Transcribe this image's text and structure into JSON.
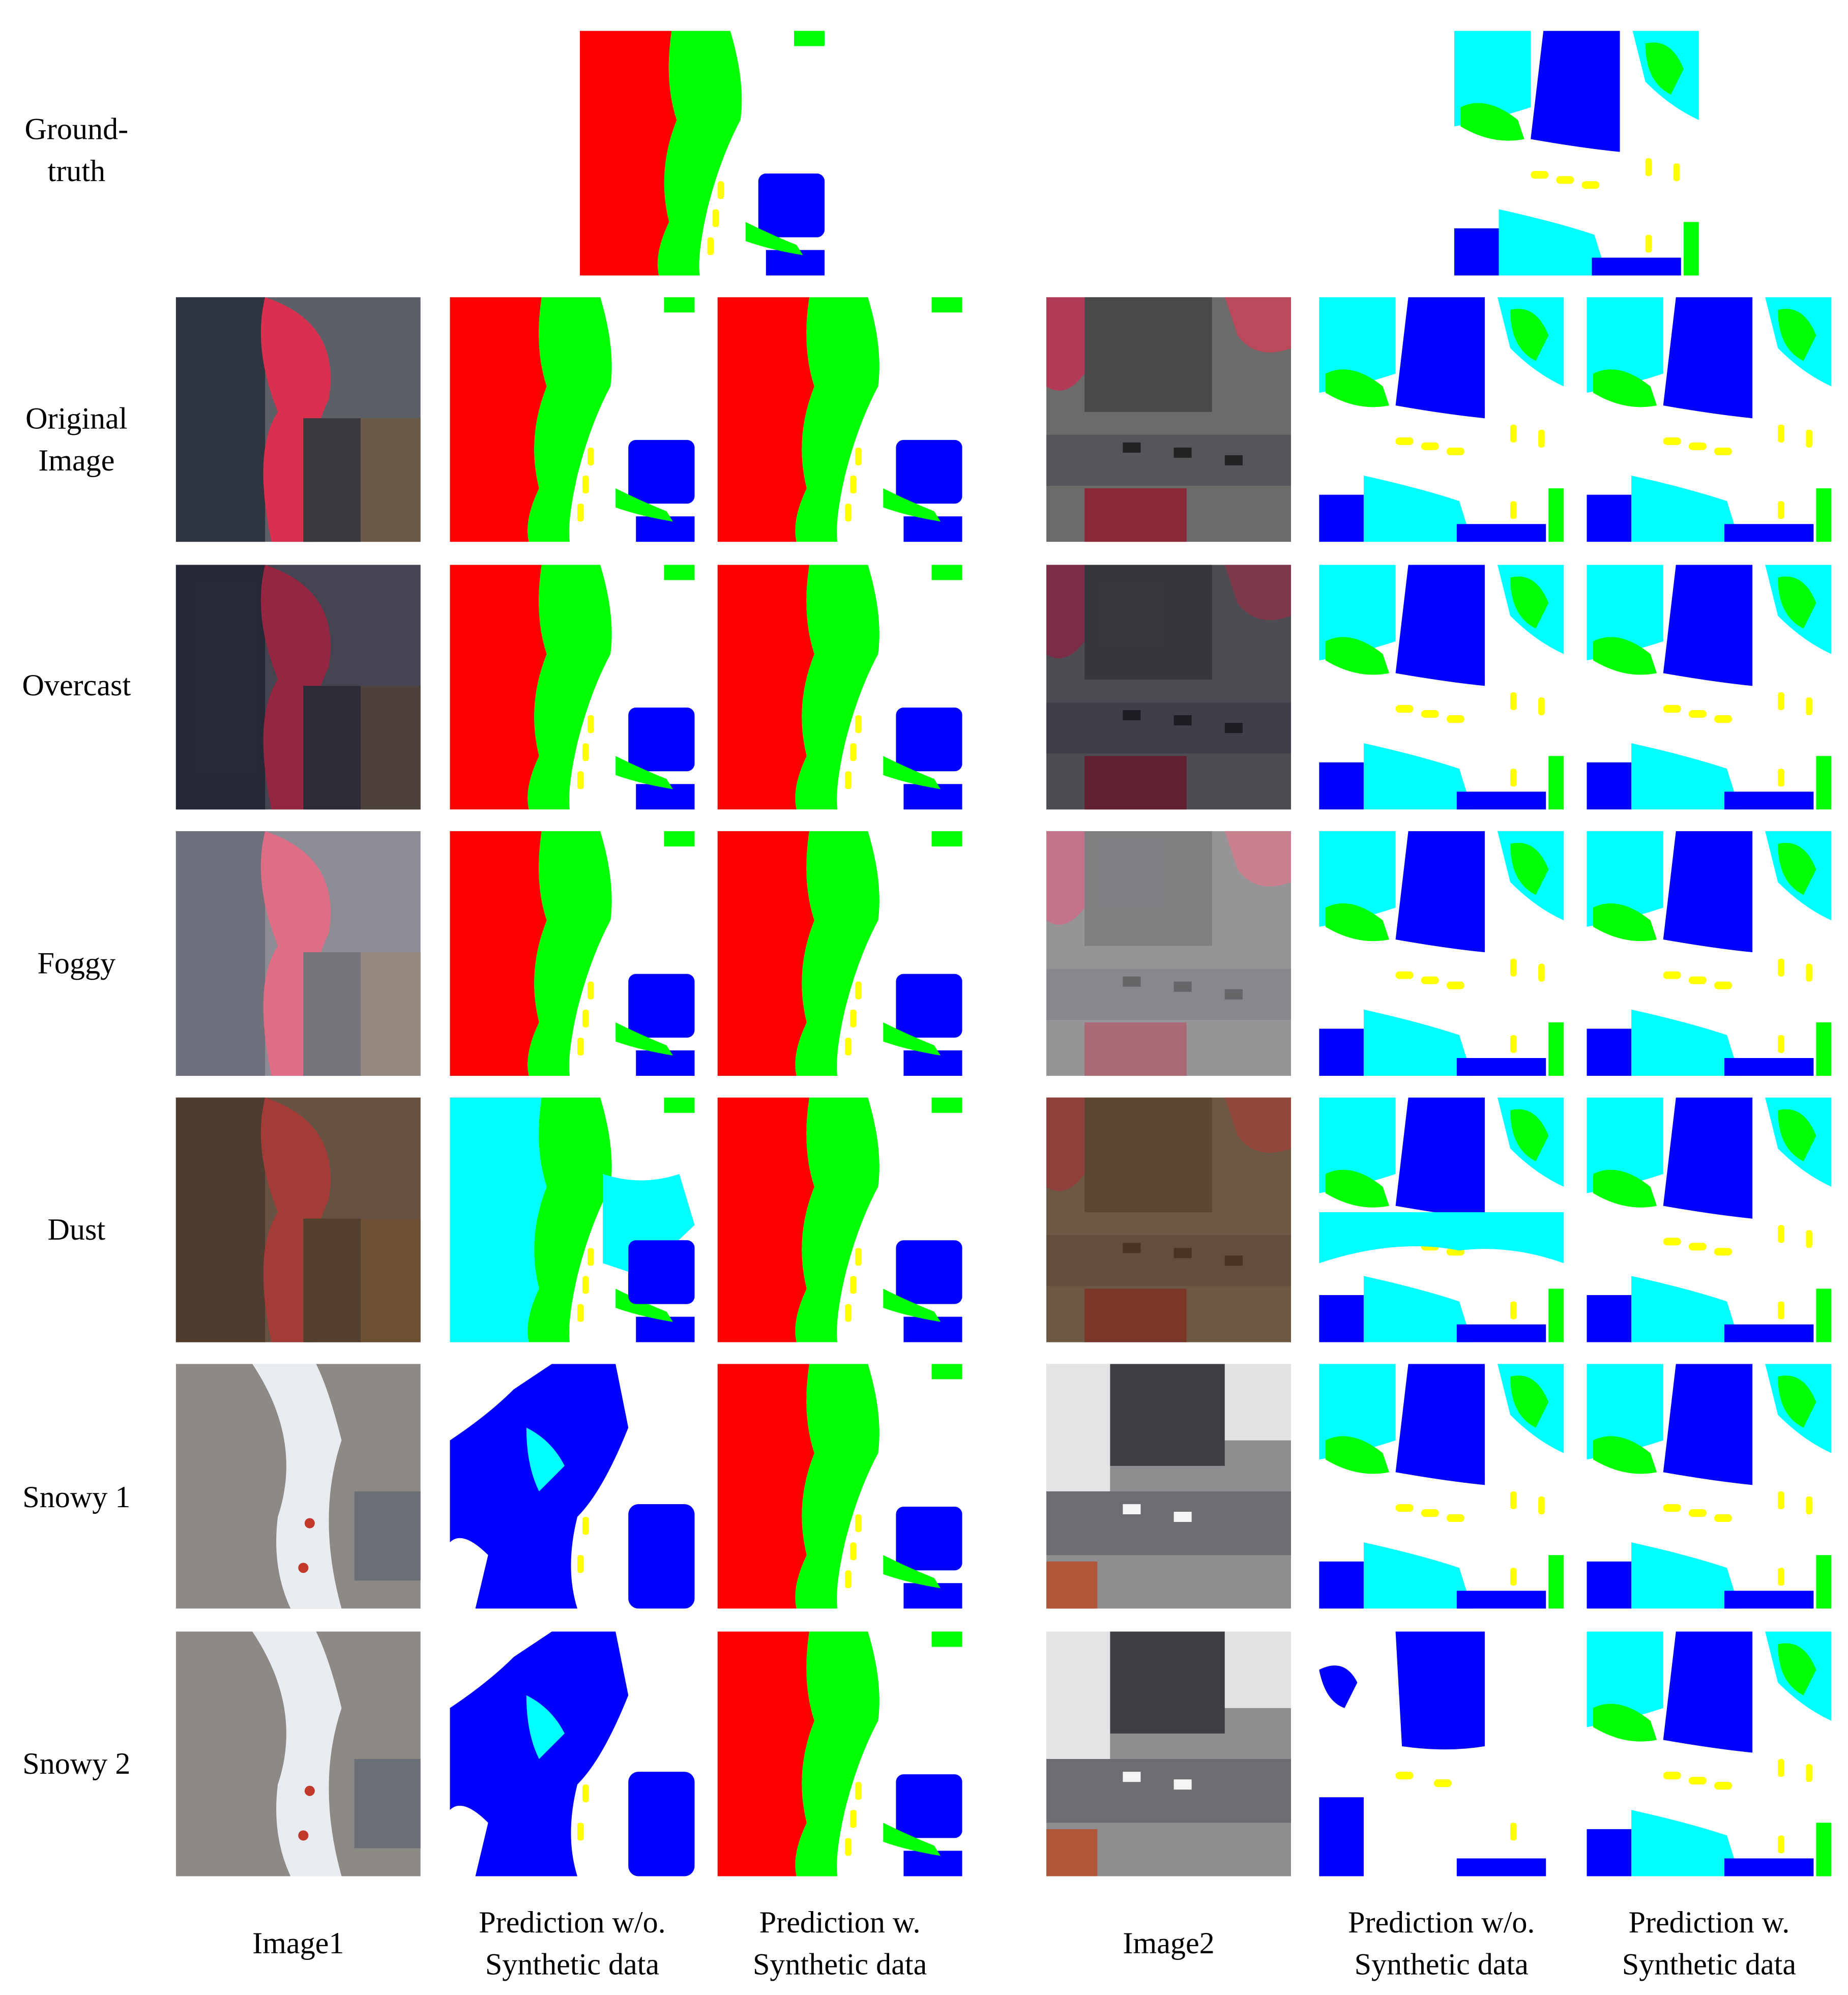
{
  "row_labels": [
    [
      "Ground-",
      "truth"
    ],
    [
      "Original",
      "Image"
    ],
    [
      "Overcast"
    ],
    [
      "Foggy"
    ],
    [
      "Dust"
    ],
    [
      "Snowy 1"
    ],
    [
      "Snowy 2"
    ]
  ],
  "column_labels": [
    [
      "Image1"
    ],
    [
      "Prediction w/o.",
      "Synthetic data"
    ],
    [
      "Prediction w.",
      "Synthetic data"
    ],
    [
      "Image2"
    ],
    [
      "Prediction w/o.",
      "Synthetic data"
    ],
    [
      "Prediction w.",
      "Synthetic data"
    ]
  ]
}
